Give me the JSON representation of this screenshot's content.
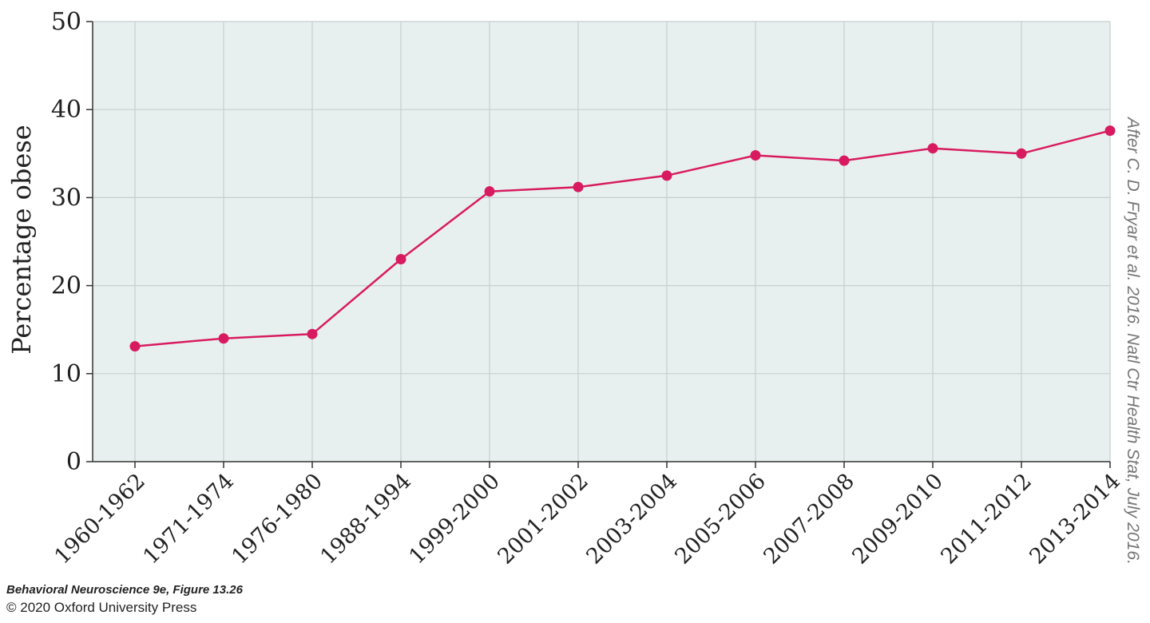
{
  "chart_data": {
    "type": "line",
    "categories": [
      "1960-1962",
      "1971-1974",
      "1976-1980",
      "1988-1994",
      "1999-2000",
      "2001-2002",
      "2003-2004",
      "2005-2006",
      "2007-2008",
      "2009-2010",
      "2011-2012",
      "2013-2014"
    ],
    "series": [
      {
        "values": [
          13.1,
          14.0,
          14.5,
          23.0,
          30.7,
          31.2,
          32.5,
          34.8,
          34.2,
          35.6,
          35.0,
          37.6
        ]
      }
    ],
    "ylabel": "Percentage obese",
    "xlabel": "",
    "ylim": [
      0,
      50
    ],
    "yticks": [
      0,
      10,
      20,
      30,
      40,
      50
    ],
    "grid": true,
    "colors": {
      "line": "#d81b60",
      "plot_bg": "#e8f0ef",
      "grid": "#c4cfcf"
    },
    "source_credit": "After C. D. Fryar et al. 2016. Natl Ctr Health Stat, July 2016."
  },
  "footer": {
    "book": "Behavioral Neuroscience 9e, Figure 13.26",
    "copyright": "© 2020 Oxford University Press"
  }
}
